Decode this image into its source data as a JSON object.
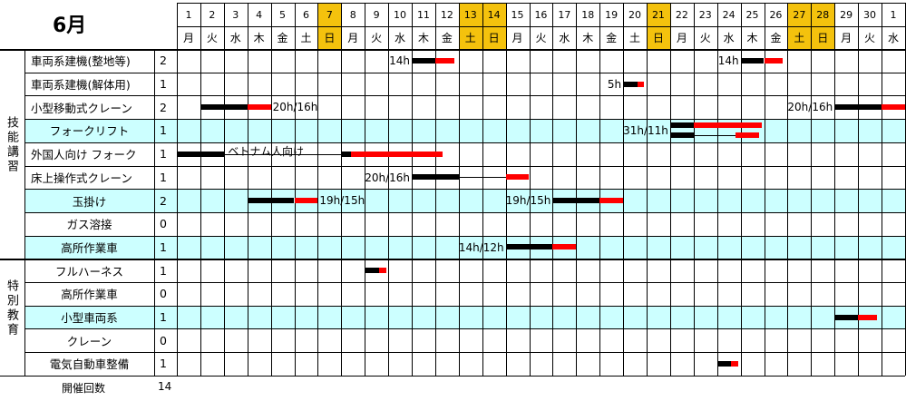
{
  "month_title": "6月",
  "days": [
    {
      "num": "1",
      "wd": "月",
      "hl": false
    },
    {
      "num": "2",
      "wd": "火",
      "hl": false
    },
    {
      "num": "3",
      "wd": "水",
      "hl": false
    },
    {
      "num": "4",
      "wd": "木",
      "hl": false
    },
    {
      "num": "5",
      "wd": "金",
      "hl": false
    },
    {
      "num": "6",
      "wd": "土",
      "hl": false
    },
    {
      "num": "7",
      "wd": "日",
      "hl": true
    },
    {
      "num": "8",
      "wd": "月",
      "hl": false
    },
    {
      "num": "9",
      "wd": "火",
      "hl": false
    },
    {
      "num": "10",
      "wd": "水",
      "hl": false
    },
    {
      "num": "11",
      "wd": "木",
      "hl": false
    },
    {
      "num": "12",
      "wd": "金",
      "hl": false
    },
    {
      "num": "13",
      "wd": "土",
      "hl": true
    },
    {
      "num": "14",
      "wd": "日",
      "hl": true
    },
    {
      "num": "15",
      "wd": "月",
      "hl": false
    },
    {
      "num": "16",
      "wd": "火",
      "hl": false
    },
    {
      "num": "17",
      "wd": "水",
      "hl": false
    },
    {
      "num": "18",
      "wd": "木",
      "hl": false
    },
    {
      "num": "19",
      "wd": "金",
      "hl": false
    },
    {
      "num": "20",
      "wd": "土",
      "hl": false
    },
    {
      "num": "21",
      "wd": "日",
      "hl": true
    },
    {
      "num": "22",
      "wd": "月",
      "hl": false
    },
    {
      "num": "23",
      "wd": "火",
      "hl": false
    },
    {
      "num": "24",
      "wd": "水",
      "hl": false
    },
    {
      "num": "25",
      "wd": "木",
      "hl": false
    },
    {
      "num": "26",
      "wd": "金",
      "hl": false
    },
    {
      "num": "27",
      "wd": "土",
      "hl": true
    },
    {
      "num": "28",
      "wd": "日",
      "hl": true
    },
    {
      "num": "29",
      "wd": "月",
      "hl": false
    },
    {
      "num": "30",
      "wd": "火",
      "hl": false
    },
    {
      "num": "1",
      "wd": "水",
      "hl": false
    }
  ],
  "groups": [
    {
      "label": "技能講習"
    },
    {
      "label": "特別教育"
    }
  ],
  "rows": [
    {
      "name": "車両系建機(整地等)",
      "count": "2",
      "cyan": false,
      "align": "left",
      "group": 0
    },
    {
      "name": "車両系建機(解体用)",
      "count": "1",
      "cyan": false,
      "align": "left",
      "group": 0
    },
    {
      "name": "小型移動式クレーン",
      "count": "2",
      "cyan": false,
      "align": "left",
      "group": 0
    },
    {
      "name": "フォークリフト",
      "count": "1",
      "cyan": true,
      "align": "center",
      "group": 0
    },
    {
      "name": "外国人向け フォーク",
      "count": "1",
      "cyan": false,
      "align": "left",
      "group": 0
    },
    {
      "name": "床上操作式クレーン",
      "count": "1",
      "cyan": false,
      "align": "left",
      "group": 0
    },
    {
      "name": "玉掛け",
      "count": "2",
      "cyan": true,
      "align": "center",
      "group": 0
    },
    {
      "name": "ガス溶接",
      "count": "0",
      "cyan": false,
      "align": "center",
      "group": 0
    },
    {
      "name": "高所作業車",
      "count": "1",
      "cyan": true,
      "align": "center",
      "group": 0
    },
    {
      "name": "フルハーネス",
      "count": "1",
      "cyan": false,
      "align": "center",
      "group": 1
    },
    {
      "name": "高所作業車",
      "count": "0",
      "cyan": false,
      "align": "center",
      "group": 1
    },
    {
      "name": "小型車両系",
      "count": "1",
      "cyan": true,
      "align": "center",
      "group": 1
    },
    {
      "name": "クレーン",
      "count": "0",
      "cyan": false,
      "align": "center",
      "group": 1
    },
    {
      "name": "電気自動車整備",
      "count": "1",
      "cyan": false,
      "align": "center",
      "group": 1
    }
  ],
  "bars": [
    {
      "row": 0,
      "sub": 0,
      "segments": [
        {
          "color": "black",
          "from": 11,
          "to": 12
        },
        {
          "color": "red",
          "from": 12,
          "to": 12.8
        }
      ]
    },
    {
      "row": 0,
      "sub": 0,
      "segments": [
        {
          "color": "black",
          "from": 25,
          "to": 26
        },
        {
          "color": "red",
          "from": 26,
          "to": 26.8
        }
      ]
    },
    {
      "row": 1,
      "sub": 0,
      "segments": [
        {
          "color": "black",
          "from": 20,
          "to": 20.6
        },
        {
          "color": "red",
          "from": 20.6,
          "to": 20.9
        }
      ]
    },
    {
      "row": 2,
      "sub": 0,
      "segments": [
        {
          "color": "black",
          "from": 2,
          "to": 4
        },
        {
          "color": "red",
          "from": 4,
          "to": 5
        }
      ]
    },
    {
      "row": 2,
      "sub": 0,
      "segments": [
        {
          "color": "black",
          "from": 29,
          "to": 31
        },
        {
          "color": "red",
          "from": 31,
          "to": 32
        }
      ]
    },
    {
      "row": 3,
      "sub": 1,
      "segments": [
        {
          "color": "black",
          "from": 22,
          "to": 23
        },
        {
          "color": "red",
          "from": 23,
          "to": 25.9
        }
      ]
    },
    {
      "row": 3,
      "sub": 2,
      "segments": [
        {
          "color": "black",
          "from": 22,
          "to": 23
        },
        {
          "color": "red",
          "from": 24.8,
          "to": 25.8
        }
      ]
    },
    {
      "row": 4,
      "sub": 0,
      "segments": [
        {
          "color": "black",
          "from": 1,
          "to": 3
        },
        {
          "color": "black",
          "from": 8,
          "to": 8.4
        },
        {
          "color": "red",
          "from": 8.4,
          "to": 12.3
        }
      ]
    },
    {
      "row": 5,
      "sub": 0,
      "segments": [
        {
          "color": "black",
          "from": 11,
          "to": 13
        },
        {
          "color": "red",
          "from": 15,
          "to": 16
        }
      ]
    },
    {
      "row": 6,
      "sub": 0,
      "segments": [
        {
          "color": "black",
          "from": 4,
          "to": 6
        },
        {
          "color": "red",
          "from": 6,
          "to": 7
        }
      ]
    },
    {
      "row": 6,
      "sub": 0,
      "segments": [
        {
          "color": "black",
          "from": 17,
          "to": 19
        },
        {
          "color": "red",
          "from": 19,
          "to": 20
        }
      ]
    },
    {
      "row": 8,
      "sub": 0,
      "segments": [
        {
          "color": "black",
          "from": 15,
          "to": 17
        },
        {
          "color": "red",
          "from": 17,
          "to": 18
        }
      ]
    },
    {
      "row": 9,
      "sub": 0,
      "segments": [
        {
          "color": "black",
          "from": 9,
          "to": 9.6
        },
        {
          "color": "red",
          "from": 9.6,
          "to": 9.9
        }
      ]
    },
    {
      "row": 11,
      "sub": 0,
      "segments": [
        {
          "color": "black",
          "from": 29,
          "to": 30
        },
        {
          "color": "red",
          "from": 30,
          "to": 30.8
        }
      ]
    },
    {
      "row": 13,
      "sub": 0,
      "segments": [
        {
          "color": "black",
          "from": 24,
          "to": 24.6
        },
        {
          "color": "red",
          "from": 24.6,
          "to": 24.9
        }
      ]
    }
  ],
  "connectors": [
    {
      "row": 3,
      "sub": 2,
      "from": 23,
      "to": 24.8
    },
    {
      "row": 4,
      "sub": 0,
      "from": 3,
      "to": 8
    },
    {
      "row": 5,
      "sub": 0,
      "from": 13,
      "to": 15
    }
  ],
  "annotations": [
    {
      "row": 0,
      "text": "14h",
      "anchor": "right",
      "at": 11
    },
    {
      "row": 0,
      "text": "14h",
      "anchor": "right",
      "at": 25
    },
    {
      "row": 1,
      "text": "5h",
      "anchor": "right",
      "at": 20
    },
    {
      "row": 2,
      "text": "20h/16h",
      "anchor": "left",
      "at": 5
    },
    {
      "row": 2,
      "text": "20h/16h",
      "anchor": "right",
      "at": 29
    },
    {
      "row": 3,
      "text": "31h/11h",
      "anchor": "right",
      "at": 22
    },
    {
      "row": 4,
      "text": "ベトナム人向け",
      "anchor": "left",
      "at": 3.1,
      "up": true
    },
    {
      "row": 5,
      "text": "20h/16h",
      "anchor": "right",
      "at": 11
    },
    {
      "row": 6,
      "text": "19h/15h",
      "anchor": "left",
      "at": 7
    },
    {
      "row": 6,
      "text": "19h/15h",
      "anchor": "right",
      "at": 17
    },
    {
      "row": 8,
      "text": "14h/12h",
      "anchor": "right",
      "at": 15
    }
  ],
  "footer": {
    "label": "開催回数",
    "value": "14"
  }
}
